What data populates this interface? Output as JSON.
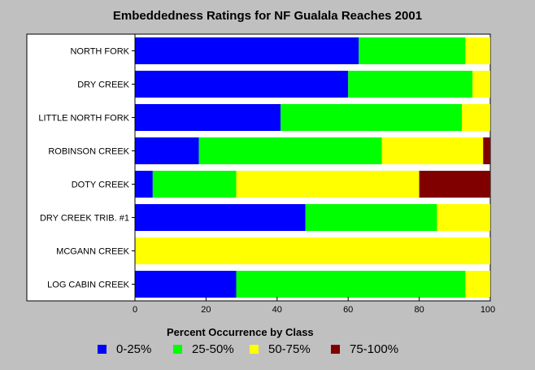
{
  "chart_data": {
    "type": "bar",
    "orientation": "horizontal",
    "stacked": true,
    "title": "Embeddedness Ratings for NF Gualala Reaches 2001",
    "xlabel": "",
    "ylabel": "",
    "xlim": [
      0,
      100
    ],
    "x_ticks": [
      0,
      20,
      40,
      60,
      80,
      100
    ],
    "grid": false,
    "legend_title": "Percent Occurrence by Class",
    "legend_position": "bottom",
    "categories": [
      "NORTH FORK",
      "DRY CREEK",
      "LITTLE NORTH FORK",
      "ROBINSON CREEK",
      "DOTY CREEK",
      "DRY CREEK TRIB. #1",
      "MCGANN CREEK",
      "LOG CABIN CREEK"
    ],
    "series": [
      {
        "name": "0-25%",
        "color": "#0000ff",
        "values": [
          63,
          60,
          41,
          18,
          5,
          48,
          0,
          28.5
        ]
      },
      {
        "name": "25-50%",
        "color": "#00ff00",
        "values": [
          30,
          35,
          51,
          51.5,
          23.5,
          37,
          0,
          64.5
        ]
      },
      {
        "name": "50-75%",
        "color": "#ffff00",
        "values": [
          7,
          5,
          8,
          28.5,
          51.5,
          15,
          100,
          7
        ]
      },
      {
        "name": "75-100%",
        "color": "#800000",
        "values": [
          0,
          0,
          0,
          2,
          20,
          0,
          0,
          0
        ]
      }
    ]
  }
}
